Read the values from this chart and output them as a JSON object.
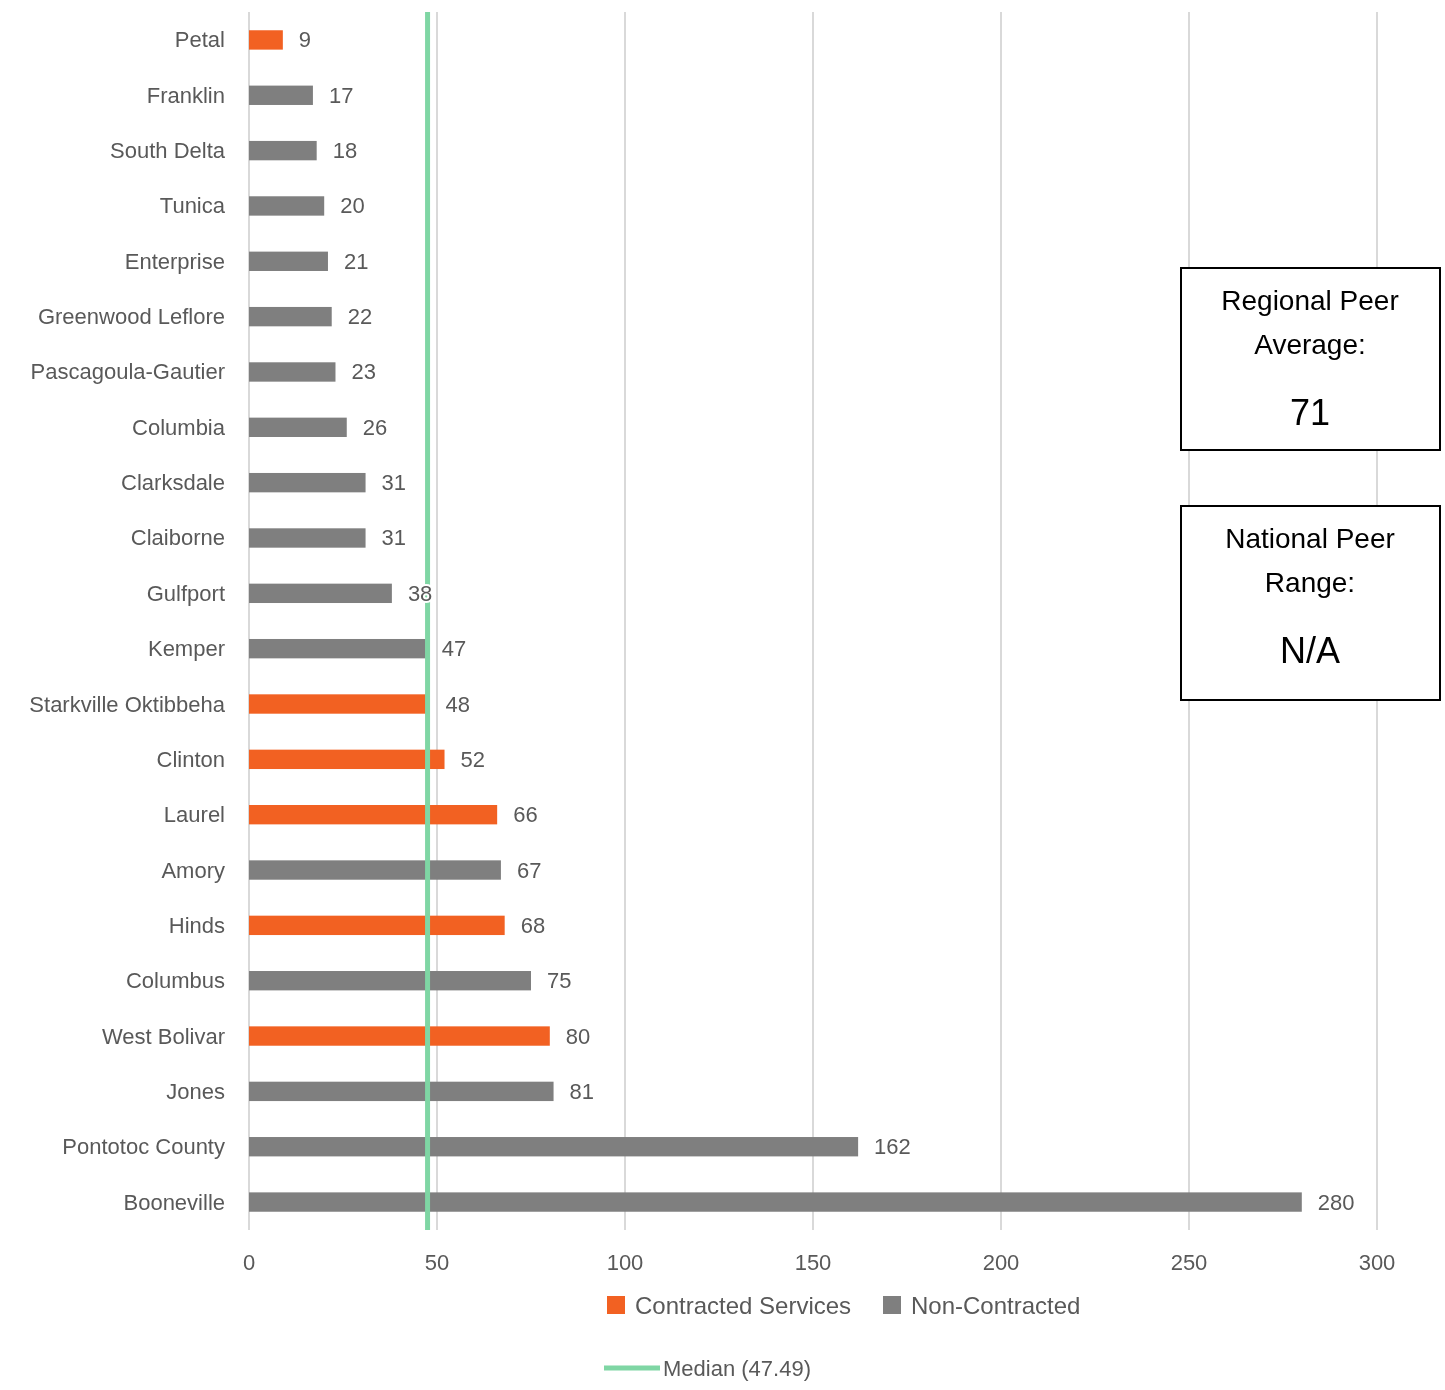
{
  "chart_data": {
    "type": "bar",
    "orientation": "horizontal",
    "categories": [
      "Petal",
      "Franklin",
      "South Delta",
      "Tunica",
      "Enterprise",
      "Greenwood Leflore",
      "Pascagoula-Gautier",
      "Columbia",
      "Clarksdale",
      "Claiborne",
      "Gulfport",
      "Kemper",
      "Starkville Oktibbeha",
      "Clinton",
      "Laurel",
      "Amory",
      "Hinds",
      "Columbus",
      "West Bolivar",
      "Jones",
      "Pontotoc County",
      "Booneville"
    ],
    "series": [
      {
        "name": "Contracted Services",
        "color": "#f26122",
        "values": [
          9,
          null,
          null,
          null,
          null,
          null,
          null,
          null,
          null,
          null,
          null,
          null,
          48,
          52,
          66,
          null,
          68,
          null,
          80,
          null,
          null,
          null
        ]
      },
      {
        "name": "Non-Contracted",
        "color": "#7f7f7f",
        "values": [
          null,
          17,
          18,
          20,
          21,
          22,
          23,
          26,
          31,
          31,
          38,
          47,
          null,
          null,
          null,
          67,
          null,
          75,
          null,
          81,
          162,
          280
        ]
      }
    ],
    "xlim": [
      0,
      300
    ],
    "xticks": [
      0,
      50,
      100,
      150,
      200,
      250,
      300
    ],
    "grid": "x",
    "legend": "bottom",
    "data_labels": true,
    "ref_lines": [
      {
        "axis": "x",
        "value": 47.49,
        "label": "Median (47.49)",
        "color": "#7fd6a4"
      }
    ],
    "annotations": [
      "Regional Peer\nAverage:\n71",
      "National Peer\nRange:\nN/A"
    ]
  }
}
